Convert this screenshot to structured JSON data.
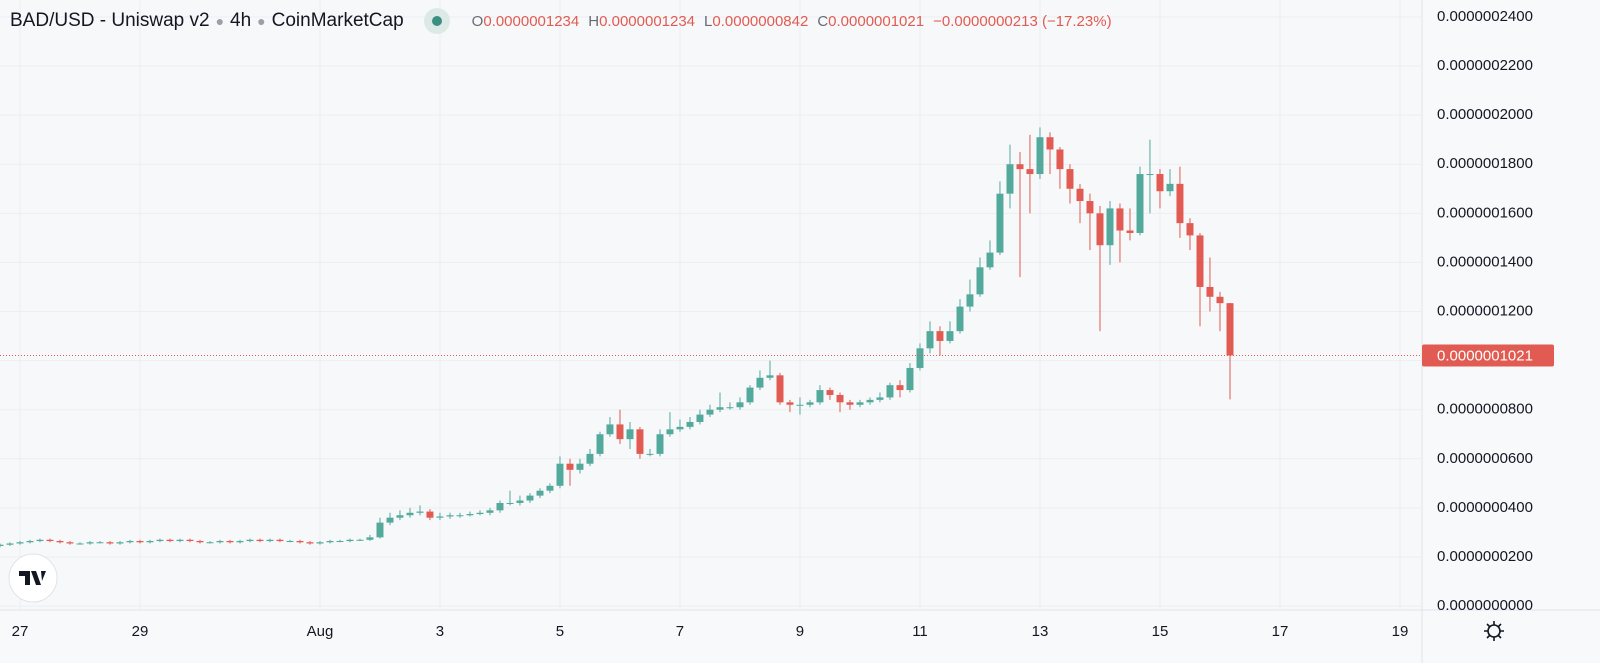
{
  "chart_data": {
    "type": "candlestick",
    "title": "BAD/USD - Uniswap v2",
    "interval": "4h",
    "source": "CoinMarketCap",
    "legend_values": {
      "O_label": "O",
      "O": "0.0000001234",
      "H_label": "H",
      "H": "0.0000001234",
      "L_label": "L",
      "L": "0.0000000842",
      "C_label": "C",
      "C": "0.0000001021",
      "change": "−0.0000000213 (−17.23%)"
    },
    "last_price": {
      "value": 1.021e-07,
      "label": "0.0000001021"
    },
    "up_color": "#53a99c",
    "down_color": "#e15b52",
    "grid": true,
    "xlim": [
      26.667,
      50.367
    ],
    "xticks": [
      27,
      29,
      {
        "value": 32,
        "label": "Aug"
      },
      {
        "value": 34,
        "label": "3"
      },
      {
        "value": 36,
        "label": "5"
      },
      {
        "value": 38,
        "label": "7"
      },
      {
        "value": 40,
        "label": "9"
      },
      {
        "value": 42,
        "label": "11"
      },
      {
        "value": 44,
        "label": "13"
      },
      {
        "value": 46,
        "label": "15"
      },
      {
        "value": 48,
        "label": "17"
      },
      {
        "value": 50,
        "label": "19"
      }
    ],
    "ylim": [
      -1.6e-09,
      2.469e-07
    ],
    "yticks": [
      {
        "value": 0,
        "label": "0.0000000000"
      },
      {
        "value": 2e-08,
        "label": "0.0000000200"
      },
      {
        "value": 4e-08,
        "label": "0.0000000400"
      },
      {
        "value": 6e-08,
        "label": "0.0000000600"
      },
      {
        "value": 8e-08,
        "label": "0.0000000800"
      },
      {
        "value": 1e-07,
        "label": "0.0000001000"
      },
      {
        "value": 1.2e-07,
        "label": "0.0000001200"
      },
      {
        "value": 1.4e-07,
        "label": "0.0000001400"
      },
      {
        "value": 1.6e-07,
        "label": "0.0000001600"
      },
      {
        "value": 1.8e-07,
        "label": "0.0000001800"
      },
      {
        "value": 2e-07,
        "label": "0.0000002000"
      },
      {
        "value": 2.2e-07,
        "label": "0.0000002200"
      },
      {
        "value": 2.4e-07,
        "label": "0.0000002400"
      }
    ],
    "x": [
      26.667,
      26.833,
      27,
      27.167,
      27.333,
      27.5,
      27.667,
      27.833,
      28,
      28.167,
      28.333,
      28.5,
      28.667,
      28.833,
      29,
      29.167,
      29.333,
      29.5,
      29.667,
      29.833,
      30,
      30.167,
      30.333,
      30.5,
      30.667,
      30.833,
      31,
      31.167,
      31.333,
      31.5,
      31.667,
      31.833,
      32,
      32.167,
      32.333,
      32.5,
      32.667,
      32.833,
      33,
      33.167,
      33.333,
      33.5,
      33.667,
      33.833,
      34,
      34.167,
      34.333,
      34.5,
      34.667,
      34.833,
      35,
      35.167,
      35.333,
      35.5,
      35.667,
      35.833,
      36,
      36.167,
      36.333,
      36.5,
      36.667,
      36.833,
      37,
      37.167,
      37.333,
      37.5,
      37.667,
      37.833,
      38,
      38.167,
      38.333,
      38.5,
      38.667,
      38.833,
      39,
      39.167,
      39.333,
      39.5,
      39.667,
      39.833,
      40,
      40.167,
      40.333,
      40.5,
      40.667,
      40.833,
      41,
      41.167,
      41.333,
      41.5,
      41.667,
      41.833,
      42,
      42.167,
      42.333,
      42.5,
      42.667,
      42.833,
      43,
      43.167,
      43.333,
      43.5,
      43.667,
      43.833,
      44,
      44.167,
      44.333,
      44.5,
      44.667,
      44.833,
      45,
      45.167,
      45.333,
      45.5,
      45.667,
      45.833,
      46,
      46.167,
      46.333,
      46.5,
      46.667,
      46.833,
      47,
      47.167
    ],
    "open": [
      2.45e-08,
      2.5e-08,
      2.55e-08,
      2.6e-08,
      2.65e-08,
      2.7e-08,
      2.65e-08,
      2.6e-08,
      2.55e-08,
      2.55e-08,
      2.6e-08,
      2.6e-08,
      2.55e-08,
      2.6e-08,
      2.65e-08,
      2.6e-08,
      2.65e-08,
      2.7e-08,
      2.65e-08,
      2.7e-08,
      2.65e-08,
      2.6e-08,
      2.6e-08,
      2.65e-08,
      2.6e-08,
      2.65e-08,
      2.7e-08,
      2.65e-08,
      2.7e-08,
      2.65e-08,
      2.65e-08,
      2.6e-08,
      2.55e-08,
      2.6e-08,
      2.65e-08,
      2.65e-08,
      2.7e-08,
      2.7e-08,
      2.8e-08,
      3.4e-08,
      3.6e-08,
      3.7e-08,
      3.8e-08,
      3.85e-08,
      3.6e-08,
      3.65e-08,
      3.7e-08,
      3.7e-08,
      3.75e-08,
      3.8e-08,
      3.9e-08,
      4.2e-08,
      4.2e-08,
      4.3e-08,
      4.5e-08,
      4.7e-08,
      4.9e-08,
      5.8e-08,
      5.55e-08,
      5.8e-08,
      6.2e-08,
      7e-08,
      7.4e-08,
      6.8e-08,
      7.2e-08,
      6.2e-08,
      6.2e-08,
      7e-08,
      7.2e-08,
      7.3e-08,
      7.5e-08,
      7.8e-08,
      8e-08,
      8.1e-08,
      8.1e-08,
      8.3e-08,
      8.9e-08,
      9.3e-08,
      9.4e-08,
      8.3e-08,
      8.2e-08,
      8.2e-08,
      8.3e-08,
      8.8e-08,
      8.6e-08,
      8.3e-08,
      8.2e-08,
      8.3e-08,
      8.4e-08,
      8.5e-08,
      9e-08,
      8.8e-08,
      9.7e-08,
      1.05e-07,
      1.12e-07,
      1.08e-07,
      1.12e-07,
      1.22e-07,
      1.27e-07,
      1.38e-07,
      1.44e-07,
      1.68e-07,
      1.8e-07,
      1.78e-07,
      1.76e-07,
      1.91e-07,
      1.86e-07,
      1.78e-07,
      1.7e-07,
      1.65e-07,
      1.6e-07,
      1.47e-07,
      1.62e-07,
      1.53e-07,
      1.52e-07,
      1.76e-07,
      1.76e-07,
      1.69e-07,
      1.72e-07,
      1.56e-07,
      1.51e-07,
      1.3e-07,
      1.26e-07,
      1.234e-07
    ],
    "high": [
      2.55e-08,
      2.6e-08,
      2.65e-08,
      2.7e-08,
      2.75e-08,
      2.75e-08,
      2.7e-08,
      2.65e-08,
      2.6e-08,
      2.65e-08,
      2.65e-08,
      2.65e-08,
      2.65e-08,
      2.7e-08,
      2.7e-08,
      2.7e-08,
      2.75e-08,
      2.75e-08,
      2.75e-08,
      2.75e-08,
      2.7e-08,
      2.65e-08,
      2.7e-08,
      2.7e-08,
      2.7e-08,
      2.75e-08,
      2.75e-08,
      2.75e-08,
      2.75e-08,
      2.7e-08,
      2.7e-08,
      2.65e-08,
      2.65e-08,
      2.7e-08,
      2.7e-08,
      2.75e-08,
      2.75e-08,
      2.9e-08,
      3.6e-08,
      3.8e-08,
      3.9e-08,
      4e-08,
      4.1e-08,
      3.95e-08,
      3.8e-08,
      3.8e-08,
      3.8e-08,
      3.85e-08,
      3.9e-08,
      4e-08,
      4.3e-08,
      4.7e-08,
      4.5e-08,
      4.6e-08,
      4.8e-08,
      5e-08,
      6.1e-08,
      6e-08,
      6e-08,
      6.4e-08,
      7.1e-08,
      7.7e-08,
      8e-08,
      7.5e-08,
      7.3e-08,
      6.4e-08,
      7.2e-08,
      7.9e-08,
      7.6e-08,
      7.7e-08,
      8e-08,
      8.2e-08,
      8.7e-08,
      8.3e-08,
      8.5e-08,
      9e-08,
      9.6e-08,
      1e-07,
      9.5e-08,
      8.4e-08,
      8.5e-08,
      8.4e-08,
      9e-08,
      8.9e-08,
      8.7e-08,
      8.4e-08,
      8.4e-08,
      8.5e-08,
      8.7e-08,
      9.1e-08,
      9.2e-08,
      9.9e-08,
      1.07e-07,
      1.16e-07,
      1.14e-07,
      1.16e-07,
      1.25e-07,
      1.33e-07,
      1.42e-07,
      1.49e-07,
      1.73e-07,
      1.88e-07,
      1.85e-07,
      1.92e-07,
      1.95e-07,
      1.93e-07,
      1.87e-07,
      1.8e-07,
      1.72e-07,
      1.68e-07,
      1.63e-07,
      1.65e-07,
      1.64e-07,
      1.62e-07,
      1.79e-07,
      1.9e-07,
      1.78e-07,
      1.78e-07,
      1.79e-07,
      1.58e-07,
      1.52e-07,
      1.42e-07,
      1.28e-07,
      1.234e-07
    ],
    "low": [
      2.4e-08,
      2.45e-08,
      2.5e-08,
      2.55e-08,
      2.6e-08,
      2.6e-08,
      2.55e-08,
      2.5e-08,
      2.5e-08,
      2.5e-08,
      2.55e-08,
      2.5e-08,
      2.5e-08,
      2.55e-08,
      2.55e-08,
      2.55e-08,
      2.6e-08,
      2.6e-08,
      2.6e-08,
      2.6e-08,
      2.55e-08,
      2.55e-08,
      2.55e-08,
      2.55e-08,
      2.55e-08,
      2.6e-08,
      2.6e-08,
      2.6e-08,
      2.6e-08,
      2.6e-08,
      2.55e-08,
      2.5e-08,
      2.5e-08,
      2.55e-08,
      2.6e-08,
      2.6e-08,
      2.65e-08,
      2.65e-08,
      2.75e-08,
      3.3e-08,
      3.5e-08,
      3.6e-08,
      3.7e-08,
      3.5e-08,
      3.5e-08,
      3.55e-08,
      3.6e-08,
      3.65e-08,
      3.7e-08,
      3.7e-08,
      3.8e-08,
      4.1e-08,
      4.1e-08,
      4.2e-08,
      4.4e-08,
      4.6e-08,
      4.8e-08,
      4.9e-08,
      5.4e-08,
      5.7e-08,
      6.1e-08,
      6.9e-08,
      6.6e-08,
      6.4e-08,
      6e-08,
      6.1e-08,
      6.1e-08,
      6.9e-08,
      7.1e-08,
      7.2e-08,
      7.4e-08,
      7.7e-08,
      7.9e-08,
      8e-08,
      8e-08,
      8.2e-08,
      8.8e-08,
      9.2e-08,
      8.2e-08,
      7.9e-08,
      7.8e-08,
      8.1e-08,
      8.2e-08,
      8.4e-08,
      7.9e-08,
      8e-08,
      8.1e-08,
      8.2e-08,
      8.3e-08,
      8.4e-08,
      8.5e-08,
      8.7e-08,
      9.6e-08,
      1.03e-07,
      1.02e-07,
      1.07e-07,
      1.11e-07,
      1.2e-07,
      1.26e-07,
      1.37e-07,
      1.43e-07,
      1.62e-07,
      1.34e-07,
      1.6e-07,
      1.74e-07,
      1.76e-07,
      1.7e-07,
      1.64e-07,
      1.56e-07,
      1.45e-07,
      1.12e-07,
      1.39e-07,
      1.4e-07,
      1.49e-07,
      1.51e-07,
      1.6e-07,
      1.62e-07,
      1.67e-07,
      1.5e-07,
      1.45e-07,
      1.14e-07,
      1.2e-07,
      1.12e-07,
      8.42e-08
    ],
    "close": [
      2.5e-08,
      2.55e-08,
      2.6e-08,
      2.65e-08,
      2.7e-08,
      2.65e-08,
      2.6e-08,
      2.55e-08,
      2.55e-08,
      2.6e-08,
      2.6e-08,
      2.55e-08,
      2.6e-08,
      2.65e-08,
      2.6e-08,
      2.65e-08,
      2.7e-08,
      2.65e-08,
      2.7e-08,
      2.65e-08,
      2.6e-08,
      2.6e-08,
      2.65e-08,
      2.6e-08,
      2.65e-08,
      2.7e-08,
      2.65e-08,
      2.7e-08,
      2.65e-08,
      2.65e-08,
      2.6e-08,
      2.55e-08,
      2.6e-08,
      2.65e-08,
      2.65e-08,
      2.7e-08,
      2.7e-08,
      2.8e-08,
      3.4e-08,
      3.6e-08,
      3.7e-08,
      3.8e-08,
      3.85e-08,
      3.6e-08,
      3.65e-08,
      3.7e-08,
      3.7e-08,
      3.75e-08,
      3.8e-08,
      3.9e-08,
      4.2e-08,
      4.2e-08,
      4.3e-08,
      4.5e-08,
      4.7e-08,
      4.9e-08,
      5.8e-08,
      5.55e-08,
      5.8e-08,
      6.2e-08,
      7e-08,
      7.4e-08,
      6.8e-08,
      7.2e-08,
      6.2e-08,
      6.2e-08,
      7e-08,
      7.2e-08,
      7.3e-08,
      7.5e-08,
      7.8e-08,
      8e-08,
      8.1e-08,
      8.1e-08,
      8.3e-08,
      8.9e-08,
      9.3e-08,
      9.4e-08,
      8.3e-08,
      8.2e-08,
      8.2e-08,
      8.3e-08,
      8.8e-08,
      8.6e-08,
      8.3e-08,
      8.2e-08,
      8.3e-08,
      8.4e-08,
      8.5e-08,
      9e-08,
      8.8e-08,
      9.7e-08,
      1.05e-07,
      1.12e-07,
      1.08e-07,
      1.12e-07,
      1.22e-07,
      1.27e-07,
      1.38e-07,
      1.44e-07,
      1.68e-07,
      1.8e-07,
      1.78e-07,
      1.76e-07,
      1.91e-07,
      1.86e-07,
      1.78e-07,
      1.7e-07,
      1.65e-07,
      1.6e-07,
      1.47e-07,
      1.62e-07,
      1.53e-07,
      1.52e-07,
      1.76e-07,
      1.76e-07,
      1.69e-07,
      1.72e-07,
      1.56e-07,
      1.51e-07,
      1.3e-07,
      1.26e-07,
      1.234e-07,
      1.021e-07
    ]
  }
}
